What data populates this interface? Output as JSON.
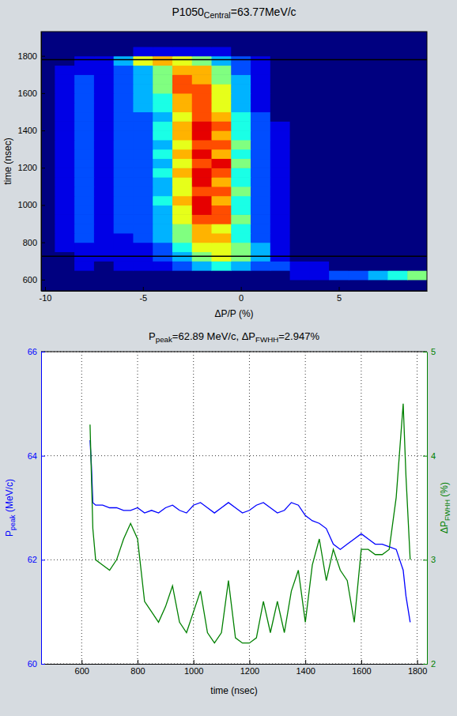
{
  "chart_data": [
    {
      "type": "heatmap",
      "title": [
        "P1050",
        "Central",
        "=63.77MeV/c"
      ],
      "x_label": "ΔP/P (%)",
      "y_label": "time (nsec)",
      "x": [
        -10,
        -9,
        -8,
        -7,
        -6,
        -5,
        -4,
        -3,
        -2,
        -1,
        0,
        1,
        2,
        3,
        4,
        5,
        6,
        7,
        8,
        9
      ],
      "y": [
        575,
        625,
        675,
        725,
        775,
        825,
        875,
        925,
        975,
        1025,
        1075,
        1125,
        1175,
        1225,
        1275,
        1325,
        1375,
        1425,
        1475,
        1525,
        1575,
        1625,
        1675,
        1725,
        1775,
        1825,
        1875
      ],
      "values": [
        [
          0,
          0,
          0,
          0,
          0,
          0,
          0,
          0,
          0,
          0,
          0,
          0,
          0,
          0,
          0,
          0,
          0,
          0,
          0,
          0
        ],
        [
          0,
          0,
          0,
          0,
          0,
          0,
          0,
          0,
          0,
          0,
          0,
          0,
          0,
          1,
          1,
          2,
          2,
          3,
          4,
          5
        ],
        [
          0,
          0,
          1,
          0,
          1,
          1,
          1,
          2,
          3,
          4,
          3,
          2,
          2,
          1,
          1,
          0,
          0,
          0,
          0,
          0
        ],
        [
          0,
          0,
          1,
          1,
          1,
          1,
          2,
          3,
          5,
          6,
          5,
          3,
          1,
          0,
          0,
          0,
          0,
          0,
          0,
          0
        ],
        [
          0,
          1,
          1,
          1,
          1,
          1,
          2,
          4,
          6,
          6,
          5,
          3,
          1,
          0,
          0,
          0,
          0,
          0,
          0,
          0
        ],
        [
          0,
          1,
          2,
          1,
          1,
          2,
          3,
          5,
          7,
          7,
          4,
          2,
          1,
          0,
          0,
          0,
          0,
          0,
          0,
          0
        ],
        [
          0,
          1,
          2,
          1,
          2,
          2,
          3,
          5,
          7,
          6,
          4,
          2,
          1,
          0,
          0,
          0,
          0,
          0,
          0,
          0
        ],
        [
          0,
          1,
          2,
          1,
          2,
          2,
          3,
          6,
          8,
          8,
          5,
          2,
          1,
          0,
          0,
          0,
          0,
          0,
          0,
          0
        ],
        [
          0,
          1,
          2,
          1,
          2,
          2,
          3,
          6,
          9,
          8,
          4,
          2,
          1,
          0,
          0,
          0,
          0,
          0,
          0,
          0
        ],
        [
          0,
          1,
          2,
          1,
          2,
          2,
          4,
          7,
          9,
          7,
          4,
          2,
          1,
          0,
          0,
          0,
          0,
          0,
          0,
          0
        ],
        [
          0,
          1,
          2,
          1,
          2,
          2,
          3,
          6,
          8,
          8,
          5,
          2,
          1,
          0,
          0,
          0,
          0,
          0,
          0,
          0
        ],
        [
          0,
          1,
          2,
          1,
          2,
          2,
          3,
          6,
          9,
          7,
          4,
          2,
          1,
          0,
          0,
          0,
          0,
          0,
          0,
          0
        ],
        [
          0,
          1,
          2,
          1,
          2,
          2,
          4,
          7,
          9,
          8,
          4,
          2,
          1,
          0,
          0,
          0,
          0,
          0,
          0,
          0
        ],
        [
          0,
          1,
          2,
          1,
          2,
          2,
          3,
          6,
          8,
          9,
          5,
          2,
          1,
          0,
          0,
          0,
          0,
          0,
          0,
          0
        ],
        [
          0,
          1,
          2,
          1,
          2,
          2,
          4,
          7,
          9,
          7,
          4,
          2,
          1,
          0,
          0,
          0,
          0,
          0,
          0,
          0
        ],
        [
          0,
          1,
          2,
          1,
          2,
          2,
          3,
          6,
          8,
          8,
          5,
          2,
          1,
          0,
          0,
          0,
          0,
          0,
          0,
          0
        ],
        [
          0,
          1,
          2,
          1,
          2,
          2,
          4,
          7,
          9,
          7,
          4,
          2,
          1,
          0,
          0,
          0,
          0,
          0,
          0,
          0
        ],
        [
          0,
          1,
          2,
          1,
          2,
          2,
          4,
          7,
          9,
          8,
          4,
          2,
          1,
          0,
          0,
          0,
          0,
          0,
          0,
          0
        ],
        [
          0,
          1,
          2,
          1,
          2,
          2,
          3,
          6,
          8,
          7,
          4,
          2,
          0,
          0,
          0,
          0,
          0,
          0,
          0,
          0
        ],
        [
          0,
          1,
          2,
          1,
          2,
          3,
          4,
          7,
          8,
          6,
          3,
          1,
          0,
          0,
          0,
          0,
          0,
          0,
          0,
          0
        ],
        [
          0,
          1,
          2,
          1,
          2,
          3,
          4,
          7,
          8,
          6,
          3,
          1,
          0,
          0,
          0,
          0,
          0,
          0,
          0,
          0
        ],
        [
          0,
          1,
          2,
          1,
          2,
          3,
          5,
          8,
          8,
          6,
          3,
          1,
          0,
          0,
          0,
          0,
          0,
          0,
          0,
          0
        ],
        [
          0,
          1,
          2,
          1,
          2,
          3,
          5,
          8,
          7,
          5,
          3,
          1,
          0,
          0,
          0,
          0,
          0,
          0,
          0,
          0
        ],
        [
          0,
          1,
          1,
          1,
          2,
          3,
          5,
          7,
          7,
          5,
          2,
          1,
          0,
          0,
          0,
          0,
          0,
          0,
          0,
          0
        ],
        [
          0,
          0,
          1,
          1,
          3,
          6,
          7,
          6,
          5,
          3,
          2,
          1,
          0,
          0,
          0,
          0,
          0,
          0,
          0,
          0
        ],
        [
          0,
          0,
          0,
          0,
          0,
          1,
          1,
          1,
          1,
          1,
          0,
          0,
          0,
          0,
          0,
          0,
          0,
          0,
          0,
          0
        ],
        [
          0,
          0,
          0,
          0,
          0,
          0,
          0,
          0,
          0,
          0,
          0,
          0,
          0,
          0,
          0,
          0,
          0,
          0,
          0,
          0
        ]
      ],
      "zlim": [
        0,
        10
      ],
      "xlim": [
        -10.2,
        9.5
      ],
      "ylim": [
        540,
        1930
      ],
      "xticks": [
        -10,
        -5,
        0,
        5
      ],
      "yticks": [
        600,
        800,
        1000,
        1200,
        1400,
        1600,
        1800
      ],
      "hlines": [
        725,
        1780
      ]
    },
    {
      "type": "line",
      "title": [
        "P",
        "peak",
        "=62.89 MeV/c, ΔP",
        "FWHH",
        "=2.947%"
      ],
      "x_label": "time (nsec)",
      "y_label": [
        "P",
        "peak",
        " (MeV/c)"
      ],
      "y2_label": [
        "ΔP",
        "FWHH",
        " (%)"
      ],
      "x": [
        630,
        635,
        640,
        650,
        675,
        700,
        725,
        750,
        775,
        800,
        825,
        850,
        875,
        900,
        925,
        950,
        975,
        1000,
        1025,
        1050,
        1075,
        1100,
        1125,
        1150,
        1175,
        1200,
        1225,
        1250,
        1275,
        1300,
        1325,
        1350,
        1375,
        1400,
        1425,
        1450,
        1475,
        1500,
        1525,
        1550,
        1575,
        1600,
        1625,
        1650,
        1675,
        1700,
        1725,
        1750,
        1760,
        1775
      ],
      "series": [
        {
          "color": "#0000ff",
          "values": [
            64.3,
            63.8,
            63.1,
            63.05,
            63.05,
            63.0,
            63.0,
            62.95,
            62.95,
            63.0,
            62.9,
            62.95,
            62.9,
            63.0,
            63.05,
            62.95,
            62.9,
            63.05,
            63.1,
            63.0,
            62.9,
            63.0,
            63.1,
            63.0,
            62.9,
            62.95,
            63.05,
            63.1,
            63.0,
            62.9,
            62.95,
            63.1,
            63.05,
            62.85,
            62.75,
            62.7,
            62.6,
            62.3,
            62.2,
            62.3,
            62.4,
            62.5,
            62.4,
            62.3,
            62.3,
            62.25,
            62.2,
            61.8,
            61.3,
            60.8
          ]
        },
        {
          "color": "#008000",
          "axis": "y2",
          "values": [
            4.3,
            3.8,
            3.3,
            3.0,
            2.95,
            2.9,
            3.0,
            3.2,
            3.35,
            3.2,
            2.6,
            2.5,
            2.4,
            2.55,
            2.75,
            2.4,
            2.3,
            2.5,
            2.7,
            2.3,
            2.2,
            2.3,
            2.8,
            2.25,
            2.2,
            2.2,
            2.25,
            2.6,
            2.3,
            2.6,
            2.3,
            2.7,
            2.9,
            2.4,
            2.95,
            3.2,
            2.8,
            3.1,
            2.9,
            2.8,
            2.4,
            3.1,
            3.1,
            3.05,
            3.05,
            3.1,
            3.6,
            4.5,
            3.8,
            3.0
          ]
        }
      ],
      "xlim": [
        455,
        1835
      ],
      "ylim": [
        60,
        66
      ],
      "y2lim": [
        2,
        5
      ],
      "xticks": [
        600,
        800,
        1000,
        1200,
        1400,
        1600,
        1800
      ],
      "yticks": [
        60,
        62,
        64,
        66
      ],
      "y2ticks": [
        2,
        3,
        4,
        5
      ],
      "grid": true
    }
  ]
}
